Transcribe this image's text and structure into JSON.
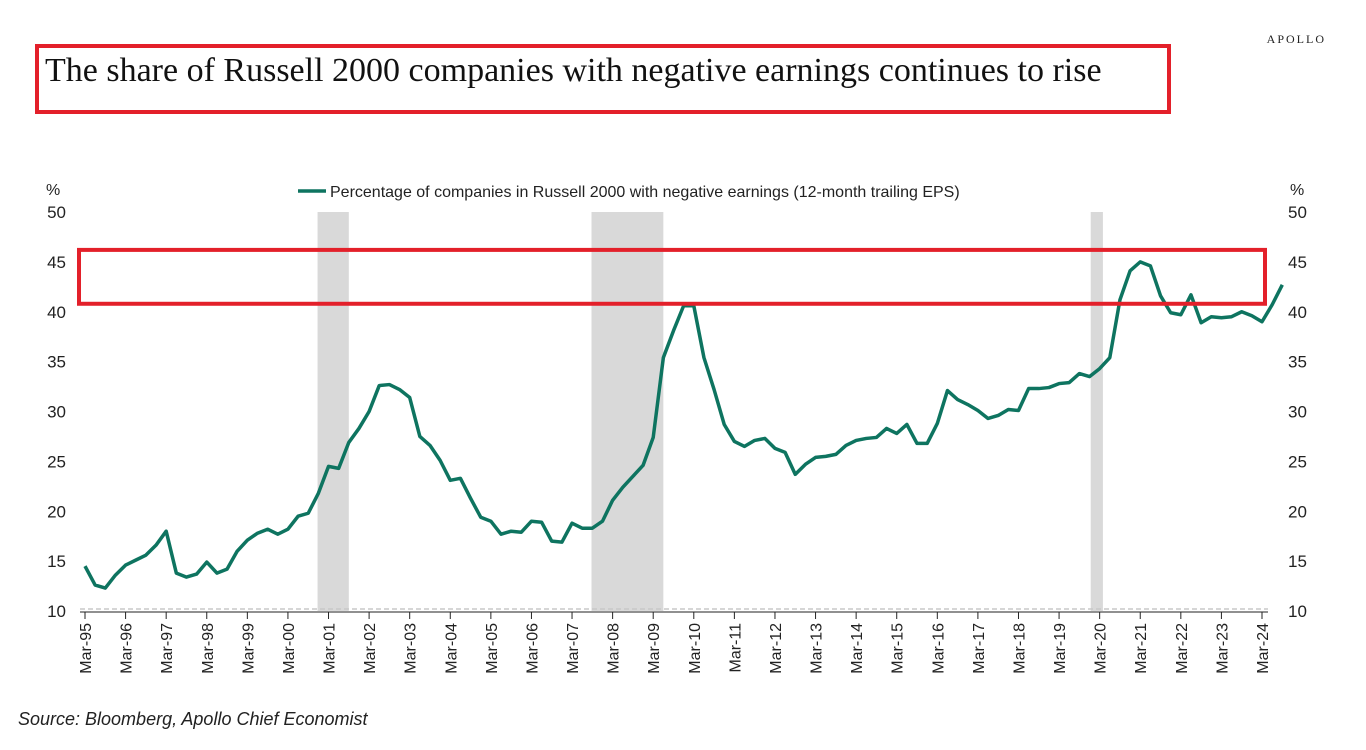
{
  "brand": "APOLLO",
  "title": "The share of Russell 2000 companies with negative earnings continues to rise",
  "source": "Source: Bloomberg, Apollo Chief Economist",
  "colors": {
    "line": "#0e7460",
    "recession": "#d9d9d9",
    "highlight": "#e3202a"
  },
  "chart_data": {
    "type": "line",
    "title": "The share of Russell 2000 companies with negative earnings continues to rise",
    "ylabel_left": "%",
    "ylabel_right": "%",
    "ylim": [
      10,
      50
    ],
    "yticks": [
      "10",
      "15",
      "20",
      "25",
      "30",
      "35",
      "40",
      "45",
      "50"
    ],
    "xticks": [
      "Mar-95",
      "Mar-96",
      "Mar-97",
      "Mar-98",
      "Mar-99",
      "Mar-00",
      "Mar-01",
      "Mar-02",
      "Mar-03",
      "Mar-04",
      "Mar-05",
      "Mar-06",
      "Mar-07",
      "Mar-08",
      "Mar-09",
      "Mar-10",
      "Mar-11",
      "Mar-12",
      "Mar-13",
      "Mar-14",
      "Mar-15",
      "Mar-16",
      "Mar-17",
      "Mar-18",
      "Mar-19",
      "Mar-20",
      "Mar-21",
      "Mar-22",
      "Mar-23",
      "Mar-24"
    ],
    "frequency": "quarterly",
    "start": "Mar-95",
    "legend": "top-center",
    "series": [
      {
        "name": "Percentage of companies in Russell 2000 with negative earnings (12-month trailing EPS)",
        "values": [
          14.5,
          12.6,
          12.3,
          13.6,
          14.6,
          15.1,
          15.6,
          16.6,
          18.0,
          13.8,
          13.4,
          13.7,
          14.9,
          13.8,
          14.2,
          16.0,
          17.1,
          17.8,
          18.2,
          17.7,
          18.2,
          19.5,
          19.8,
          21.8,
          24.5,
          24.3,
          26.9,
          28.3,
          30.0,
          32.6,
          32.7,
          32.2,
          31.4,
          27.5,
          26.6,
          25.1,
          23.1,
          23.3,
          21.3,
          19.4,
          19.0,
          17.7,
          18.0,
          17.9,
          19.0,
          18.9,
          17.0,
          16.9,
          18.8,
          18.3,
          18.3,
          19.0,
          21.1,
          22.4,
          23.5,
          24.6,
          27.4,
          35.4,
          38.1,
          40.6,
          40.6,
          35.4,
          32.2,
          28.7,
          27.0,
          26.5,
          27.1,
          27.3,
          26.3,
          25.9,
          23.7,
          24.7,
          25.4,
          25.5,
          25.7,
          26.6,
          27.1,
          27.3,
          27.4,
          28.3,
          27.8,
          28.7,
          26.8,
          26.8,
          28.8,
          32.1,
          31.2,
          30.7,
          30.1,
          29.3,
          29.6,
          30.2,
          30.1,
          32.3,
          32.3,
          32.4,
          32.8,
          32.9,
          33.8,
          33.5,
          34.3,
          35.4,
          41.2,
          44.1,
          45.0,
          44.6,
          41.6,
          39.9,
          39.7,
          41.7,
          38.9,
          39.5,
          39.4,
          39.5,
          40.0,
          39.6,
          39.0,
          40.7,
          42.7
        ]
      }
    ],
    "recessions": [
      [
        2000.9,
        2001.67
      ],
      [
        2007.65,
        2009.42
      ],
      [
        2019.95,
        2020.25
      ]
    ],
    "highlight_range": [
      41,
      46
    ]
  }
}
